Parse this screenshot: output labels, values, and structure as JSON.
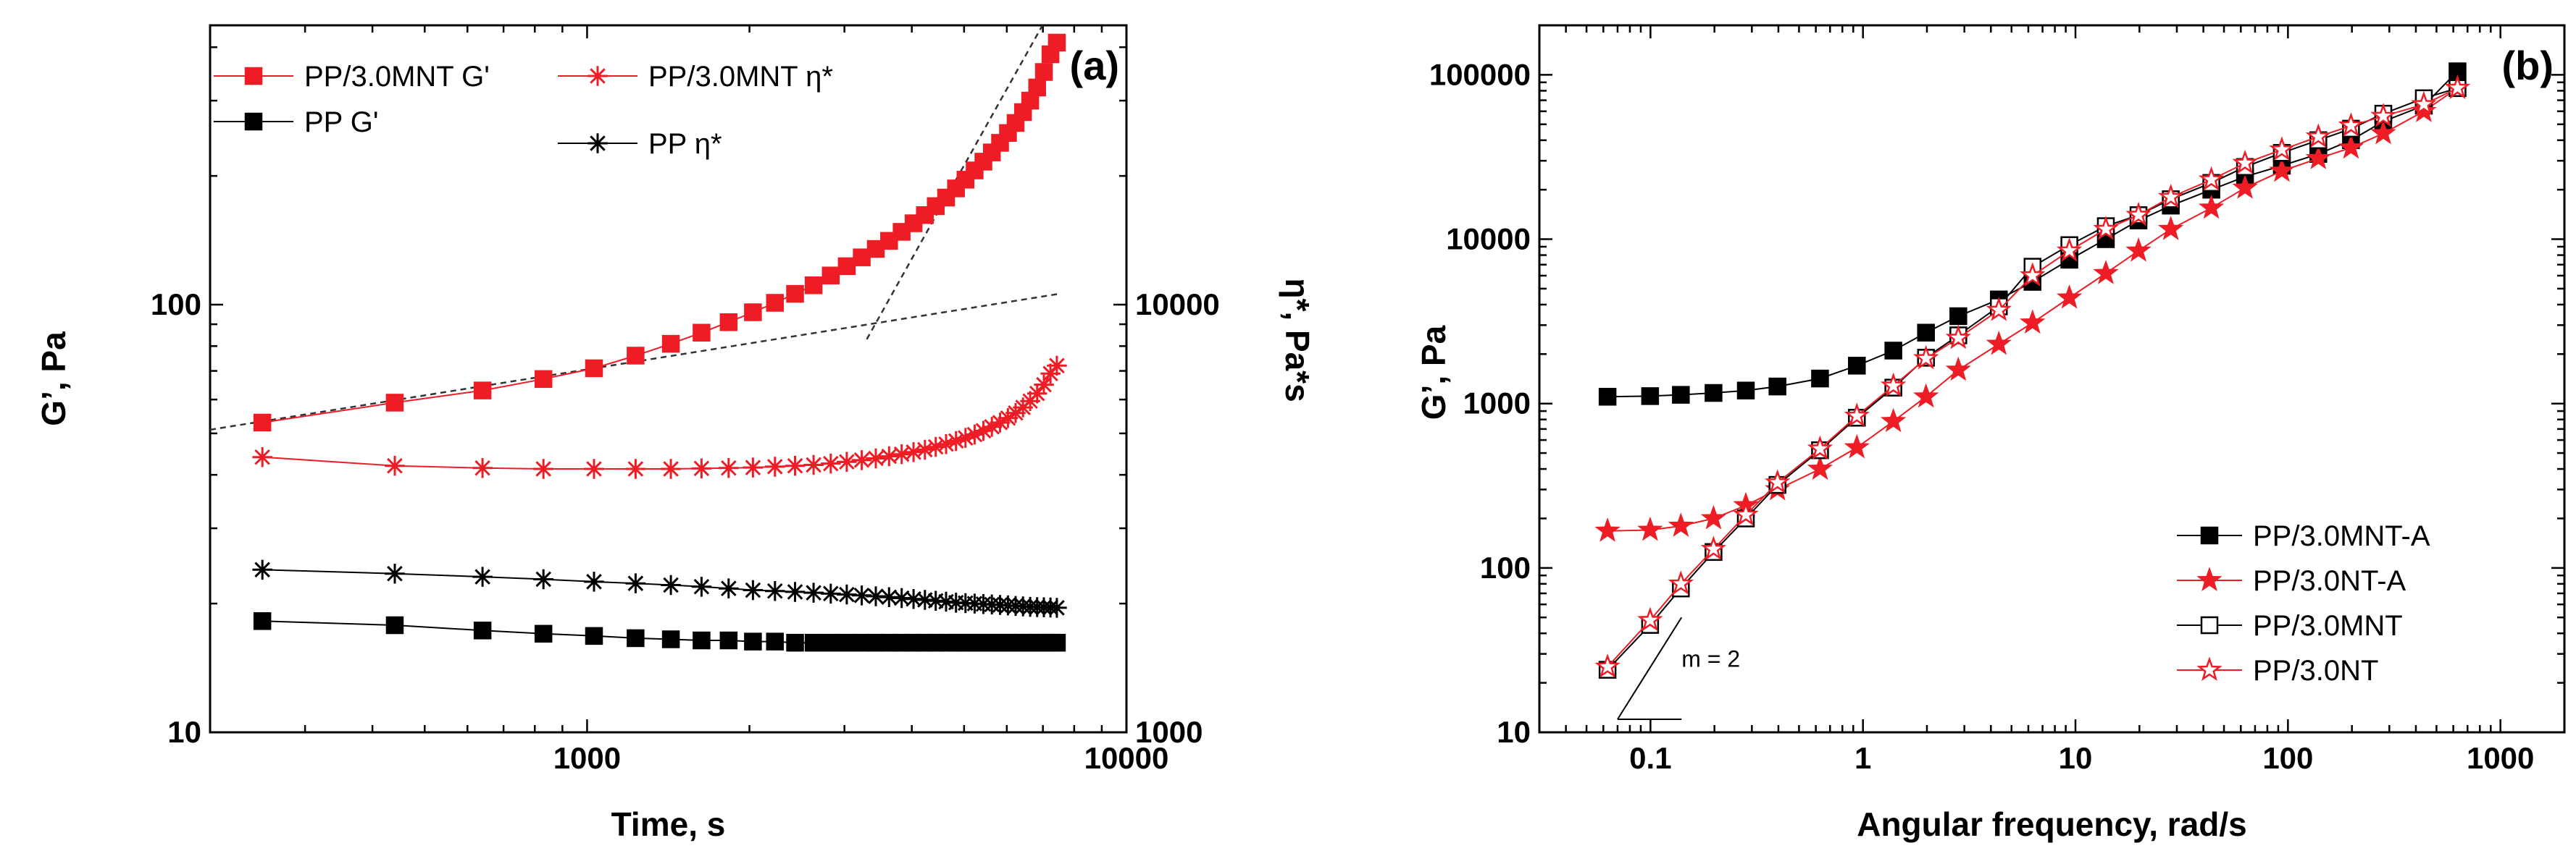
{
  "chart_data": [
    {
      "id": "a",
      "type": "scatter",
      "panel_label": "(a)",
      "xlabel": "Time, s",
      "ylabel": "G’, Pa",
      "ylabel_right": "η*, Pa*s",
      "x_scale": "log",
      "y_scale": "log",
      "xlim": [
        200,
        10000
      ],
      "ylim": [
        10,
        450
      ],
      "ylim_right": [
        1000,
        45000
      ],
      "x_ticks": [
        {
          "value": 1000,
          "label": "1000"
        },
        {
          "value": 10000,
          "label": "10000"
        }
      ],
      "y_ticks": [
        {
          "value": 10,
          "label": "10"
        },
        {
          "value": 100,
          "label": "100"
        }
      ],
      "y_ticks_right": [
        {
          "value": 1000,
          "label": "1000"
        },
        {
          "value": 10000,
          "label": "10000"
        }
      ],
      "grid": false,
      "legend_placement": "top-left",
      "series": [
        {
          "name": "PP/3.0MNT G'",
          "axis": "left",
          "marker": "square-filled",
          "color": "#ee1c25",
          "x": [
            250,
            440,
            640,
            830,
            1030,
            1230,
            1430,
            1630,
            1830,
            2030,
            2230,
            2430,
            2630,
            2830,
            3030,
            3230,
            3430,
            3630,
            3830,
            4030,
            4230,
            4430,
            4630,
            4830,
            5030,
            5230,
            5430,
            5630,
            5830,
            6030,
            6230,
            6430,
            6630,
            6830,
            7030,
            7230,
            7430
          ],
          "y": [
            53,
            59,
            63,
            67,
            71,
            76,
            81,
            86,
            91,
            96,
            101,
            106,
            111,
            117,
            123,
            129,
            135,
            141,
            148,
            155,
            162,
            170,
            178,
            187,
            196,
            206,
            216,
            227,
            239,
            252,
            266,
            282,
            300,
            322,
            350,
            385,
            410
          ]
        },
        {
          "name": "PP/3.0MNT η*",
          "axis": "right",
          "marker": "asterisk",
          "color": "#ee1c25",
          "x": [
            250,
            440,
            640,
            830,
            1030,
            1230,
            1430,
            1630,
            1830,
            2030,
            2230,
            2430,
            2630,
            2830,
            3030,
            3230,
            3430,
            3630,
            3830,
            4030,
            4230,
            4430,
            4630,
            4830,
            5030,
            5230,
            5430,
            5630,
            5830,
            6030,
            6230,
            6430,
            6630,
            6830,
            7030,
            7230,
            7430
          ],
          "y": [
            4400,
            4200,
            4150,
            4130,
            4130,
            4130,
            4130,
            4140,
            4150,
            4160,
            4180,
            4200,
            4220,
            4250,
            4290,
            4330,
            4370,
            4420,
            4470,
            4520,
            4580,
            4650,
            4720,
            4800,
            4880,
            4970,
            5070,
            5180,
            5300,
            5430,
            5580,
            5750,
            5950,
            6200,
            6500,
            6900,
            7200
          ]
        },
        {
          "name": "PP G'",
          "axis": "left",
          "marker": "square-filled",
          "color": "#000000",
          "x": [
            250,
            440,
            640,
            830,
            1030,
            1230,
            1430,
            1630,
            1830,
            2030,
            2230,
            2430,
            2630,
            2830,
            3030,
            3230,
            3430,
            3630,
            3830,
            4030,
            4230,
            4430,
            4630,
            4830,
            5030,
            5230,
            5430,
            5630,
            5830,
            6030,
            6230,
            6430,
            6630,
            6830,
            7030,
            7230,
            7430
          ],
          "y": [
            18.2,
            17.8,
            17.3,
            17.0,
            16.8,
            16.6,
            16.5,
            16.4,
            16.4,
            16.3,
            16.3,
            16.2,
            16.2,
            16.2,
            16.2,
            16.2,
            16.2,
            16.2,
            16.2,
            16.2,
            16.2,
            16.2,
            16.2,
            16.2,
            16.2,
            16.2,
            16.2,
            16.2,
            16.2,
            16.2,
            16.2,
            16.2,
            16.2,
            16.2,
            16.2,
            16.2,
            16.2
          ]
        },
        {
          "name": "PP η*",
          "axis": "right",
          "marker": "asterisk",
          "color": "#000000",
          "x": [
            250,
            440,
            640,
            830,
            1030,
            1230,
            1430,
            1630,
            1830,
            2030,
            2230,
            2430,
            2630,
            2830,
            3030,
            3230,
            3430,
            3630,
            3830,
            4030,
            4230,
            4430,
            4630,
            4830,
            5030,
            5230,
            5430,
            5630,
            5830,
            6030,
            6230,
            6430,
            6630,
            6830,
            7030,
            7230,
            7430
          ],
          "y": [
            2400,
            2350,
            2310,
            2280,
            2250,
            2230,
            2210,
            2190,
            2170,
            2150,
            2140,
            2130,
            2120,
            2110,
            2100,
            2090,
            2080,
            2070,
            2060,
            2050,
            2040,
            2030,
            2020,
            2010,
            2005,
            2000,
            1995,
            1990,
            1985,
            1980,
            1975,
            1970,
            1965,
            1962,
            1960,
            1958,
            1955
          ]
        }
      ],
      "guide_lines": [
        {
          "style": "dashed",
          "points": [
            [
              200,
              51
            ],
            [
              7500,
              106
            ]
          ]
        },
        {
          "style": "dashed",
          "points": [
            [
              3300,
              83
            ],
            [
              8500,
              700
            ]
          ]
        }
      ]
    },
    {
      "id": "b",
      "type": "scatter",
      "panel_label": "(b)",
      "xlabel": "Angular frequency, rad/s",
      "ylabel": "G’, Pa",
      "x_scale": "log",
      "y_scale": "log",
      "xlim": [
        0.03,
        2000
      ],
      "ylim": [
        10,
        200000
      ],
      "x_ticks": [
        {
          "value": 0.1,
          "label": "0.1"
        },
        {
          "value": 1,
          "label": "1"
        },
        {
          "value": 10,
          "label": "10"
        },
        {
          "value": 100,
          "label": "100"
        },
        {
          "value": 1000,
          "label": "1000"
        }
      ],
      "y_ticks": [
        {
          "value": 10,
          "label": "10"
        },
        {
          "value": 100,
          "label": "100"
        },
        {
          "value": 1000,
          "label": "1000"
        },
        {
          "value": 10000,
          "label": "10000"
        },
        {
          "value": 100000,
          "label": "100000"
        }
      ],
      "grid": false,
      "legend_placement": "bottom-right",
      "series": [
        {
          "name": "PP/3.0MNT-A",
          "marker": "square-filled",
          "color": "#000000",
          "x": [
            0.0628,
            0.0996,
            0.139,
            0.198,
            0.281,
            0.396,
            0.628,
            0.936,
            1.39,
            1.98,
            2.81,
            4.36,
            6.28,
            9.36,
            13.9,
            19.8,
            28.1,
            43.6,
            62.8,
            93.6,
            139,
            198,
            281,
            436,
            628
          ],
          "y": [
            1100,
            1110,
            1130,
            1160,
            1200,
            1270,
            1420,
            1700,
            2100,
            2700,
            3400,
            4300,
            5500,
            7500,
            10000,
            13000,
            16000,
            20000,
            24000,
            28000,
            33000,
            40000,
            52000,
            65000,
            105000
          ]
        },
        {
          "name": "PP/3.0NT-A",
          "marker": "star-filled",
          "color": "#ee1c25",
          "x": [
            0.0628,
            0.0996,
            0.139,
            0.198,
            0.281,
            0.396,
            0.628,
            0.936,
            1.39,
            1.98,
            2.81,
            4.36,
            6.28,
            9.36,
            13.9,
            19.8,
            28.1,
            43.6,
            62.8,
            93.6,
            139,
            198,
            281,
            436,
            628
          ],
          "y": [
            168,
            170,
            180,
            200,
            240,
            300,
            400,
            540,
            780,
            1100,
            1600,
            2300,
            3100,
            4400,
            6200,
            8500,
            11500,
            15500,
            20500,
            26000,
            31000,
            36000,
            44000,
            60000,
            83000
          ]
        },
        {
          "name": "PP/3.0MNT",
          "marker": "square-open",
          "color": "#000000",
          "x": [
            0.0628,
            0.0996,
            0.139,
            0.198,
            0.281,
            0.396,
            0.628,
            0.936,
            1.39,
            1.98,
            2.81,
            4.36,
            6.28,
            9.36,
            13.9,
            19.8,
            28.1,
            43.6,
            62.8,
            93.6,
            139,
            198,
            281,
            436,
            628
          ],
          "y": [
            24,
            45,
            75,
            125,
            200,
            320,
            520,
            820,
            1250,
            1900,
            2600,
            3900,
            6800,
            9200,
            12000,
            14000,
            17500,
            22000,
            27500,
            33500,
            40000,
            47000,
            58000,
            72000,
            83000
          ]
        },
        {
          "name": "PP/3.0NT",
          "marker": "star-open",
          "color": "#ee1c25",
          "x": [
            0.0628,
            0.0996,
            0.139,
            0.198,
            0.281,
            0.396,
            0.628,
            0.936,
            1.39,
            1.98,
            2.81,
            4.36,
            6.28,
            9.36,
            13.9,
            19.8,
            28.1,
            43.6,
            62.8,
            93.6,
            139,
            198,
            281,
            436,
            628
          ],
          "y": [
            25,
            48,
            80,
            130,
            210,
            330,
            530,
            840,
            1280,
            1880,
            2500,
            3700,
            6000,
            8500,
            11500,
            14000,
            18000,
            23000,
            29000,
            35000,
            42000,
            49000,
            56000,
            66000,
            83000
          ]
        }
      ],
      "annotations": [
        {
          "text": "m = 2"
        }
      ]
    }
  ]
}
